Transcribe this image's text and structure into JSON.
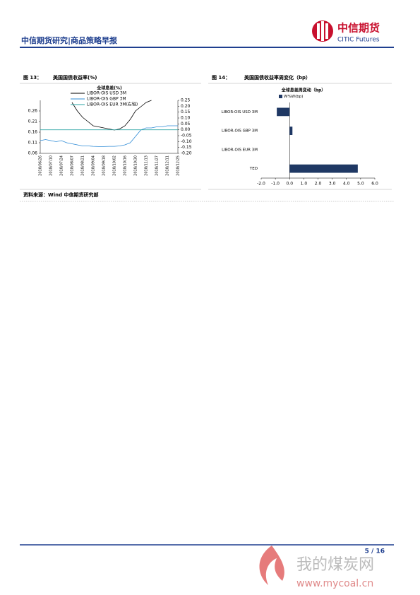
{
  "header": {
    "title": "中信期货研究|商品策略早报",
    "logo_cn": "中信期货",
    "logo_en": "CITIC Futures"
  },
  "figures": [
    {
      "label": "图 13：",
      "caption": "美国国债收益率(%)"
    },
    {
      "label": "图 14：",
      "caption": "美国国债收益率周变化（bp）"
    }
  ],
  "source": "资料来源：Wind  中信期货研究部",
  "page": "5 / 16",
  "watermark": {
    "text": "我的煤炭网",
    "url": "www.mycoal.cn"
  },
  "chart_data": [
    {
      "type": "line",
      "title": "全球息差(%)",
      "categories": [
        "2018/06/26",
        null,
        "2018/07/10",
        null,
        "2018/07/24",
        null,
        "2018/08/07",
        null,
        "2018/08/21",
        null,
        "2018/09/04",
        null,
        "2018/09/18",
        null,
        "2018/10/02",
        null,
        "2018/10/16",
        null,
        "2018/10/30",
        null,
        "2018/11/13",
        null,
        "2018/11/27",
        null,
        "2018/12/11",
        null,
        "2018/12/25"
      ],
      "series": [
        {
          "name": "LIBOR-OIS USD 3M",
          "color": "#000000",
          "values": [
            null,
            null,
            null,
            null,
            null,
            null,
            0.3,
            0.26,
            0.23,
            0.21,
            0.19,
            0.185,
            0.18,
            0.175,
            0.17,
            0.175,
            0.19,
            0.22,
            0.26,
            0.28,
            0.3,
            0.31,
            null,
            null,
            null,
            null,
            null
          ]
        },
        {
          "name": "LIBOR-OIS GBP 3M",
          "color": "#2e8bd6",
          "values": [
            0.12,
            0.125,
            0.12,
            0.115,
            0.12,
            0.11,
            0.105,
            0.1,
            0.095,
            0.095,
            0.093,
            0.092,
            0.092,
            0.093,
            0.093,
            0.095,
            0.1,
            0.11,
            0.14,
            0.17,
            0.18,
            0.18,
            0.185,
            0.185,
            0.19,
            0.19,
            0.19
          ]
        },
        {
          "name": "LIBOR-OIS EUR 3M(右轴)",
          "color": "#2aa3a3",
          "axis": "y2",
          "values": [
            0,
            0,
            0,
            0,
            0,
            0,
            0,
            0,
            0,
            0,
            0,
            0,
            0,
            0,
            0,
            0,
            0,
            0,
            0,
            0,
            0,
            0,
            0,
            0,
            0,
            0,
            0
          ]
        }
      ],
      "ylim": [
        0.06,
        0.31
      ],
      "yticks": [
        0.06,
        0.11,
        0.16,
        0.21,
        0.26
      ],
      "y2lim": [
        -0.2,
        0.25
      ],
      "y2ticks": [
        {
          "value": -0.2,
          "label": "-0.20"
        },
        {
          "value": -0.15,
          "label": "-0.15"
        },
        {
          "value": -0.1,
          "label": "-0.10"
        },
        {
          "value": -0.05,
          "label": "-0.05"
        },
        {
          "value": 0,
          "label": "0.00"
        },
        {
          "value": 0.05,
          "label": "0.05"
        },
        {
          "value": 0.1,
          "label": "0.10"
        },
        {
          "value": 0.15,
          "label": "0.15"
        },
        {
          "value": 0.2,
          "label": "0.20"
        },
        {
          "value": 0.25,
          "label": "0.25"
        }
      ]
    },
    {
      "type": "hbar",
      "title": "全球息差周变动（bp）",
      "categories": [
        "LIBOR-OIS USD 3M",
        "LIBOR-OIS GBP 3M",
        "LIBOR-OIS EUR 3M",
        "TED"
      ],
      "series": [
        {
          "name": "W%W(bp)",
          "color": "#1f3864",
          "values": [
            -0.9,
            0.2,
            0,
            4.8
          ]
        }
      ],
      "xlim": [
        -2,
        6
      ],
      "xticks": [
        {
          "value": -2,
          "label": "-2.0"
        },
        {
          "value": -1,
          "label": "-1.0"
        },
        {
          "value": 0,
          "label": "0.0"
        },
        {
          "value": 1,
          "label": "1.0"
        },
        {
          "value": 2,
          "label": "2.0"
        },
        {
          "value": 3,
          "label": "3.0"
        },
        {
          "value": 4,
          "label": "4.0"
        },
        {
          "value": 5,
          "label": "5.0"
        },
        {
          "value": 6,
          "label": "6.0"
        }
      ]
    }
  ]
}
